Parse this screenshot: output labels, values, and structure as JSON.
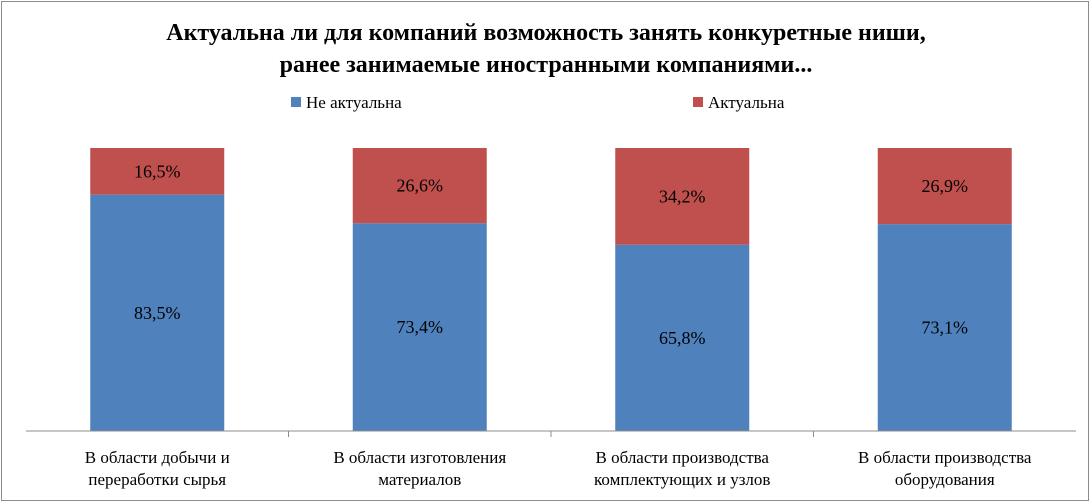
{
  "chart_data": {
    "type": "bar",
    "stacked": true,
    "title_lines": [
      "Актуальна ли для компаний возможность занять конкуретные ниши,",
      "ранее занимаемые иностранными компаниями..."
    ],
    "categories": [
      [
        "В области добычи и",
        "переработки сырья"
      ],
      [
        "В области изготовления",
        "материалов"
      ],
      [
        "В области производства",
        "комплектующих и узлов"
      ],
      [
        "В области производства",
        "оборудования"
      ]
    ],
    "series": [
      {
        "name": "Не актуальна",
        "color": "#4F81BD",
        "values": [
          83.5,
          73.4,
          65.8,
          73.1
        ],
        "labels": [
          "83,5%",
          "73,4%",
          "65,8%",
          "73,1%"
        ]
      },
      {
        "name": "Актуальна",
        "color": "#C0504D",
        "values": [
          16.5,
          26.6,
          34.2,
          26.9
        ],
        "labels": [
          "16,5%",
          "26,6%",
          "34,2%",
          "26,9%"
        ]
      }
    ],
    "ylim": [
      0,
      100
    ],
    "legend_position": "top",
    "grid": false
  }
}
